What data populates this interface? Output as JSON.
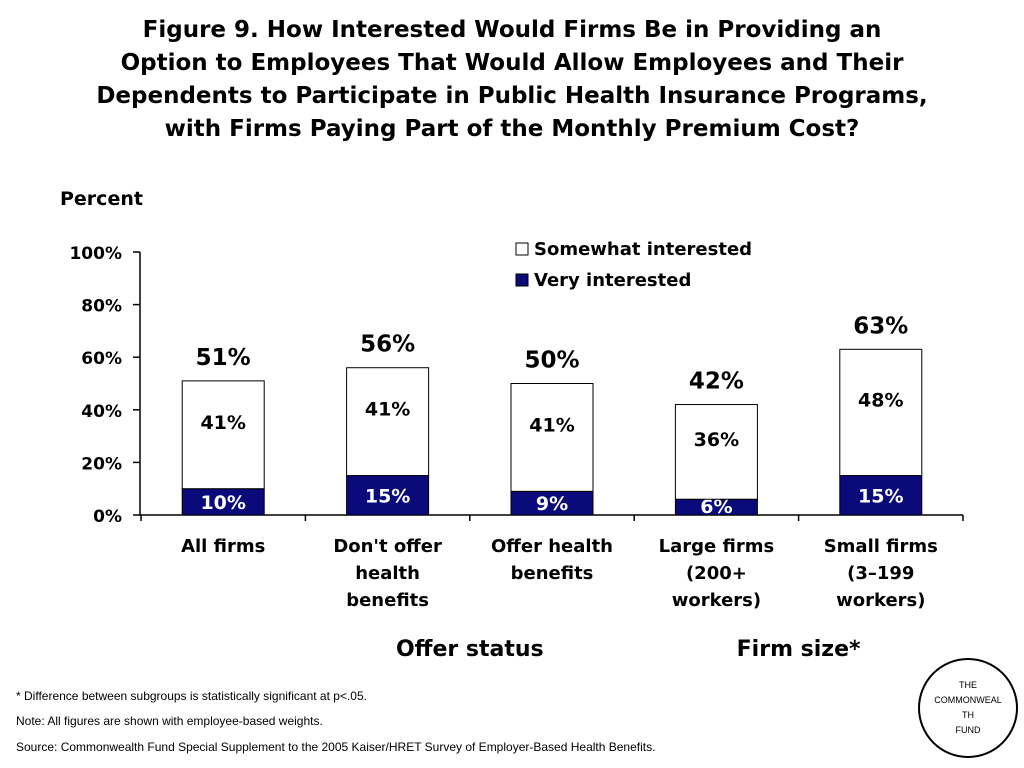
{
  "title_lines": [
    "Figure 9. How Interested Would Firms Be in Providing an",
    "Option to Employees That Would Allow Employees and Their",
    "Dependents to Participate in Public Health Insurance Programs,",
    "with Firms Paying Part of the Monthly Premium Cost?"
  ],
  "chart_data": {
    "type": "bar",
    "stacked": true,
    "title": "Figure 9. How Interested Would Firms Be in Providing an Option to Employees That Would Allow Employees and Their Dependents to Participate in Public Health Insurance Programs, with Firms Paying Part of the Monthly Premium Cost?",
    "ylabel": "Percent",
    "xlabel": "",
    "ylim": [
      0,
      100
    ],
    "yticks": [
      0,
      20,
      40,
      60,
      80,
      100
    ],
    "ytick_labels": [
      "0%",
      "20%",
      "40%",
      "60%",
      "80%",
      "100%"
    ],
    "grid": false,
    "legend_position": "top-right",
    "categories": [
      [
        "All firms"
      ],
      [
        "Don't offer",
        "health",
        "benefits"
      ],
      [
        "Offer health",
        "benefits"
      ],
      [
        "Large firms",
        "(200+",
        "workers)"
      ],
      [
        "Small firms",
        "(3–199",
        "workers)"
      ]
    ],
    "series": [
      {
        "name": "Very interested",
        "color": "#0a0a7a",
        "values": [
          10,
          15,
          9,
          6,
          15
        ],
        "labels": [
          "10%",
          "15%",
          "9%",
          "6%",
          "15%"
        ]
      },
      {
        "name": "Somewhat interested",
        "color": "#ffffff",
        "values": [
          41,
          41,
          41,
          36,
          48
        ],
        "labels": [
          "41%",
          "41%",
          "41%",
          "36%",
          "48%"
        ]
      }
    ],
    "totals": [
      51,
      56,
      50,
      42,
      63
    ],
    "total_labels": [
      "51%",
      "56%",
      "50%",
      "42%",
      "63%"
    ],
    "group_labels": [
      {
        "text": "Offer status",
        "categories": [
          1,
          2
        ]
      },
      {
        "text": "Firm size*",
        "categories": [
          3,
          4
        ]
      }
    ]
  },
  "footnotes": {
    "significance": "* Difference between subgroups is statistically significant at p<.05.",
    "note": "Note: All figures are shown with employee-based weights.",
    "source": "Source: Commonwealth Fund Special Supplement to the 2005 Kaiser/HRET Survey of Employer-Based Health Benefits."
  },
  "logo": {
    "line1": "THE",
    "line2": "COMMONWEALTH",
    "line3": "FUND"
  }
}
